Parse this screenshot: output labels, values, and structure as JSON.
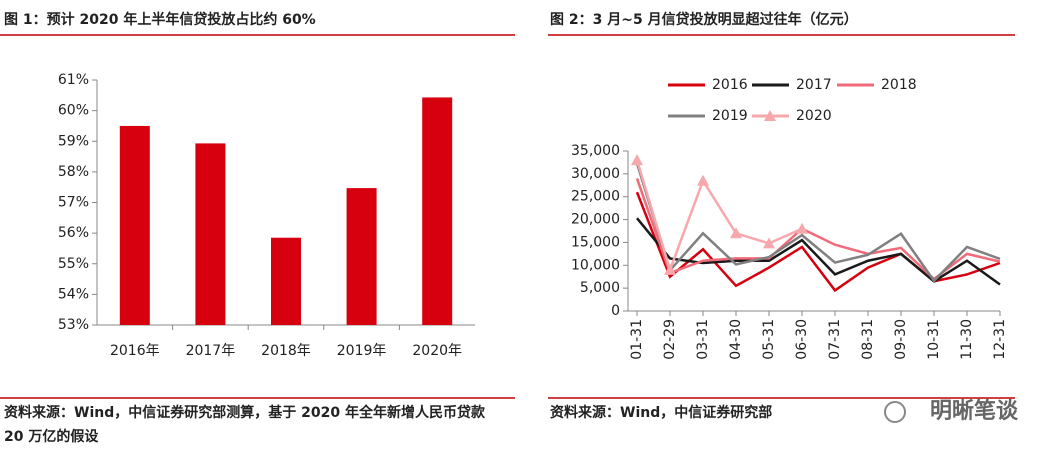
{
  "chart_data": [
    {
      "type": "bar",
      "title": "图 1：预计 2020 年上半年信贷投放占比约 60%",
      "categories": [
        "2016年",
        "2017年",
        "2018年",
        "2019年",
        "2020年"
      ],
      "values": [
        59.5,
        58.93,
        55.85,
        57.47,
        60.43
      ],
      "color": "#d7000f",
      "ylim": [
        53,
        61
      ],
      "yticks": [
        {
          "value": 53,
          "label": "53%"
        },
        {
          "value": 54,
          "label": "54%"
        },
        {
          "value": 55,
          "label": "55%"
        },
        {
          "value": 56,
          "label": "56%"
        },
        {
          "value": 57,
          "label": "57%"
        },
        {
          "value": 58,
          "label": "58%"
        },
        {
          "value": 59,
          "label": "59%"
        },
        {
          "value": 60,
          "label": "60%"
        },
        {
          "value": 61,
          "label": "61%"
        }
      ],
      "grid": false,
      "source": "资料来源：Wind，中信证券研究部测算，基于 2020 年全年新增人民币贷款 20 万亿的假设"
    },
    {
      "type": "line",
      "title": "图 2：3 月~5 月信贷投放明显超过往年（亿元）",
      "categories": [
        "01-31",
        "02-29",
        "03-31",
        "04-30",
        "05-31",
        "06-30",
        "07-31",
        "08-31",
        "09-30",
        "10-31",
        "11-30",
        "12-31"
      ],
      "series": [
        {
          "name": "2016",
          "color": "#d7000f",
          "values": [
            26000,
            7500,
            13500,
            5500,
            9500,
            14000,
            4500,
            9500,
            12500,
            6500,
            8000,
            10500
          ]
        },
        {
          "name": "2017",
          "color": "#1a1a1a",
          "values": [
            20300,
            11500,
            10500,
            11000,
            11000,
            15500,
            8000,
            11000,
            12500,
            6500,
            11000,
            5800
          ]
        },
        {
          "name": "2018",
          "color": "#f06a7a",
          "values": [
            29000,
            8300,
            11000,
            11500,
            11500,
            18000,
            14500,
            12500,
            13800,
            7000,
            12500,
            10800
          ]
        },
        {
          "name": "2019",
          "color": "#808080",
          "values": [
            32300,
            8900,
            17000,
            10200,
            11800,
            16600,
            10600,
            12300,
            16900,
            6600,
            14000,
            11400
          ]
        },
        {
          "name": "2020",
          "color": "#f7a8ad",
          "marker": "triangle",
          "values": [
            33000,
            9000,
            28500,
            17000,
            14800,
            18000,
            null,
            null,
            null,
            null,
            null,
            null
          ]
        }
      ],
      "ylim": [
        0,
        35000
      ],
      "yticks": [
        0,
        {
          "value": 5000,
          "label": "5,000"
        },
        {
          "value": 10000,
          "label": "10,000"
        },
        {
          "value": 15000,
          "label": "15,000"
        },
        {
          "value": 20000,
          "label": "20,000"
        },
        {
          "value": 25000,
          "label": "25,000"
        },
        {
          "value": 30000,
          "label": "30,000"
        },
        {
          "value": 35000,
          "label": "35,000"
        }
      ],
      "grid": false,
      "source": "资料来源：Wind，中信证券研究部"
    }
  ],
  "watermark": "明晰笔谈"
}
